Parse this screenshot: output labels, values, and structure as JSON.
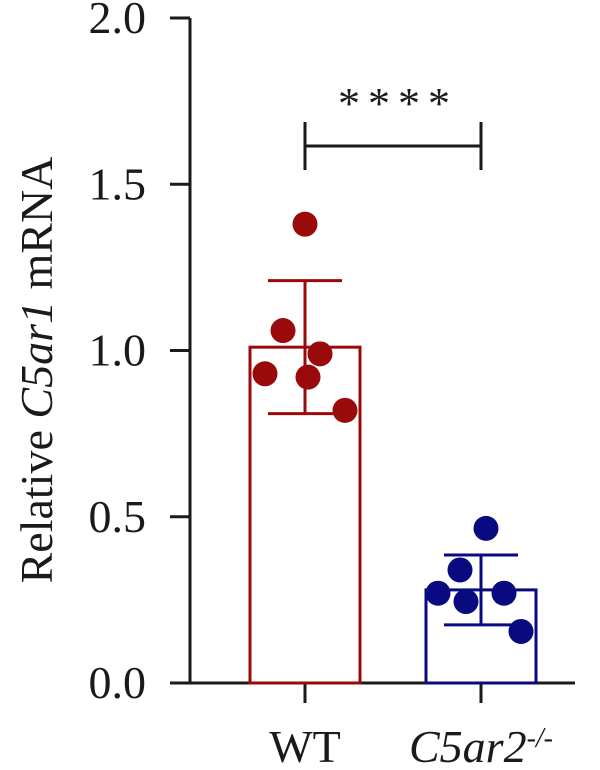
{
  "chart_data": {
    "type": "bar",
    "ylabel": {
      "pre": "Relative ",
      "italic": "C5ar1",
      "post": " mRNA"
    },
    "ylim": [
      0,
      2.0
    ],
    "yticks": [
      "0.0",
      "0.5",
      "1.0",
      "1.5",
      "2.0"
    ],
    "categories": [
      {
        "main": "WT",
        "italic": false,
        "sup": ""
      },
      {
        "main": "C5ar2",
        "italic": true,
        "sup": "-/-"
      }
    ],
    "series": [
      {
        "values": [
          1.01,
          0.28
        ],
        "error": [
          0.2,
          0.105
        ],
        "points": [
          [
            1.38,
            1.06,
            0.99,
            0.93,
            0.92,
            0.82
          ],
          [
            0.465,
            0.34,
            0.27,
            0.27,
            0.245,
            0.155
          ]
        ]
      }
    ],
    "colors": [
      "#9b0a0a",
      "#0a0a80"
    ],
    "significance": {
      "label": "****",
      "from": 0,
      "to": 1
    }
  }
}
